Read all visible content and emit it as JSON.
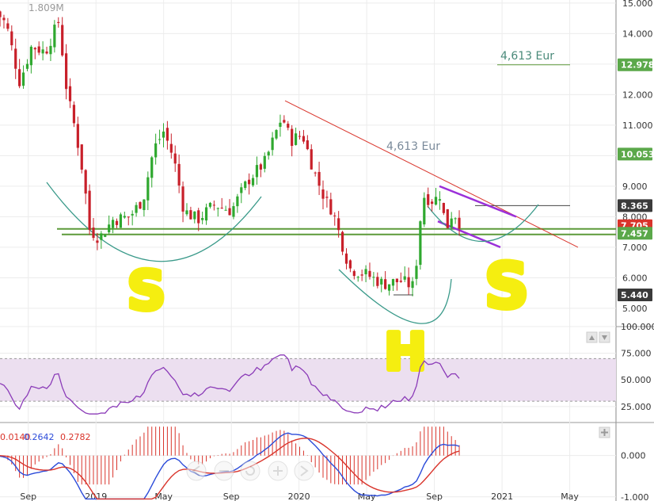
{
  "chart_data": [
    {
      "panel": "price",
      "type": "candlestick",
      "title": "",
      "volume_label": "1.809M",
      "x_ticks": [
        "Sep",
        "2019",
        "May",
        "Sep",
        "2020",
        "May",
        "Sep",
        "2021",
        "May"
      ],
      "y_ticks": [
        "5.000",
        "6.000",
        "7.000",
        "8.000",
        "9.000",
        "10.000",
        "11.000",
        "12.000",
        "13.000",
        "14.000",
        "15.000"
      ],
      "ylim": [
        4.4,
        15.1
      ],
      "price_labels": [
        {
          "value": "12.978",
          "color": "#5ba84a"
        },
        {
          "value": "10.053",
          "color": "#5ba84a"
        },
        {
          "value": "8.365",
          "color": "#3a3a3a"
        },
        {
          "value": "7.705",
          "color": "#d9342b"
        },
        {
          "value": "7.457",
          "color": "#5ba84a"
        },
        {
          "value": "5.440",
          "color": "#3a3a3a"
        }
      ],
      "annotations": [
        {
          "text": "4,613 Eur",
          "color": "#4a8a7a"
        },
        {
          "text": "4,613 Eur",
          "color": "#7a8a9a"
        }
      ],
      "pattern_labels": [
        "S",
        "H",
        "S"
      ],
      "support_levels": [
        7.6,
        7.45
      ],
      "resistance_line": {
        "from": [
          "2018-11",
          11.8
        ],
        "to": [
          "2021-04",
          7.0
        ]
      },
      "candles_up_color": "#2fa82f",
      "candles_down_color": "#c8202a"
    },
    {
      "panel": "rsi",
      "type": "line",
      "y_ticks": [
        "25.000",
        "50.000",
        "75.000",
        "100.000"
      ],
      "ylim": [
        10,
        100
      ],
      "band": [
        30,
        70
      ],
      "color": "#8b3bb8",
      "band_color": "#ecdff0"
    },
    {
      "panel": "macd",
      "type": "line+histogram",
      "values": [
        "0.0140",
        "0.2642",
        "0.2782"
      ],
      "value_colors": [
        "#d9342b",
        "#2b4bd9",
        "#d9342b"
      ],
      "y_ticks": [
        "0.000",
        "-1.000"
      ],
      "ylim": [
        -1.1,
        0.8
      ],
      "series": [
        {
          "name": "",
          "color": "#2b4bd9"
        },
        {
          "name": "",
          "color": "#d9342b"
        }
      ],
      "histogram_color": "#d9342b"
    }
  ],
  "icons": {
    "panel_up": "arrow-up-icon",
    "panel_down": "arrow-down-icon",
    "panel_expand": "plus-icon"
  },
  "toolbar": [
    "zoom-out-icon",
    "minus-icon",
    "reset-icon",
    "zoom-in-icon",
    "scroll-right-icon"
  ]
}
